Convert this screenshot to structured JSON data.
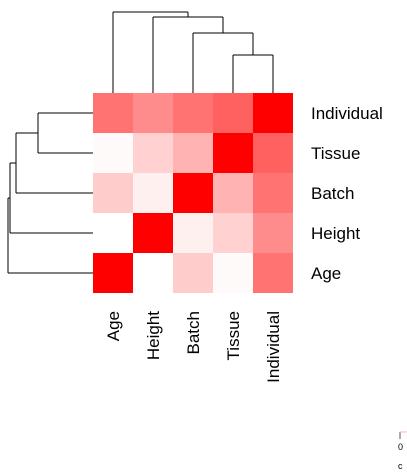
{
  "chart_data": {
    "type": "heatmap",
    "title": "",
    "row_labels": [
      "Individual",
      "Tissue",
      "Batch",
      "Height",
      "Age"
    ],
    "col_labels": [
      "Age",
      "Height",
      "Batch",
      "Tissue",
      "Individual"
    ],
    "values": [
      [
        0.55,
        0.45,
        0.55,
        0.62,
        1.0
      ],
      [
        0.02,
        0.18,
        0.3,
        1.0,
        0.62
      ],
      [
        0.2,
        0.06,
        1.0,
        0.3,
        0.55
      ],
      [
        0.0,
        1.0,
        0.06,
        0.18,
        0.45
      ],
      [
        1.0,
        0.0,
        0.2,
        0.02,
        0.55
      ]
    ],
    "color_low": "#ffffff",
    "color_high": "#ff0000",
    "row_dendrogram": true,
    "col_dendrogram": true,
    "legend": {
      "tick_label": "0",
      "caption": "c"
    }
  }
}
